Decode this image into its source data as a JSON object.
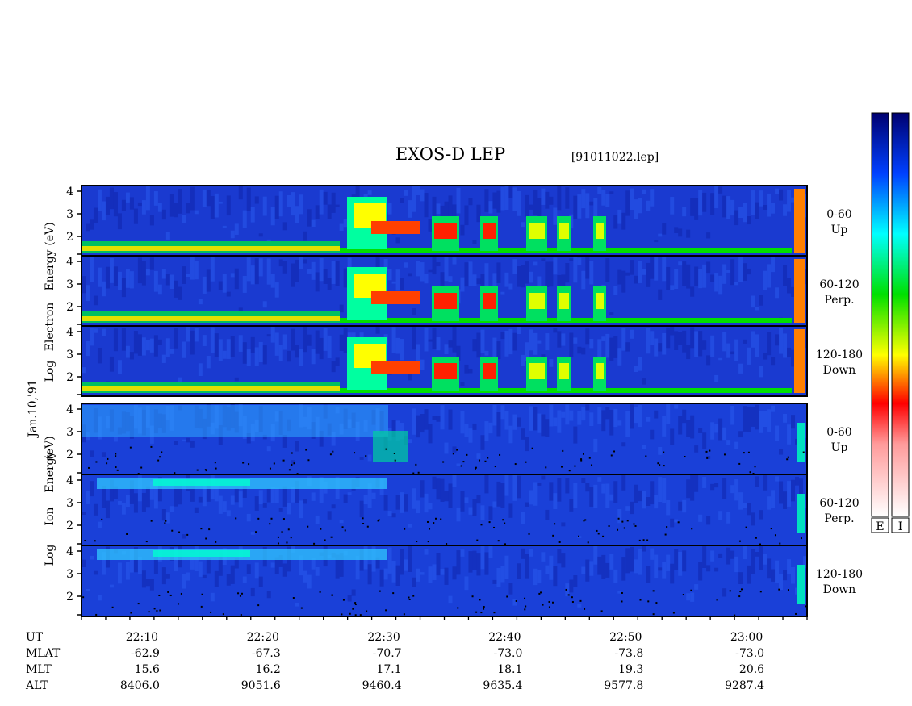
{
  "chart_data": {
    "type": "heatmap",
    "title": "EXOS-D LEP",
    "subtitle": "[91011022.lep]",
    "date_label": "Jan.10,'91",
    "y_scale": "log",
    "panels": [
      {
        "species": "Electron",
        "ylabel_parts": [
          "Log",
          "Electron",
          "Energy",
          "(eV)"
        ],
        "y_ticks": [
          "4",
          "3",
          "2"
        ],
        "channels": [
          {
            "range": "0-60",
            "direction": "Up"
          },
          {
            "range": "60-120",
            "direction": "Perp."
          },
          {
            "range": "120-180",
            "direction": "Down"
          }
        ]
      },
      {
        "species": "Ion",
        "ylabel_parts": [
          "Log",
          "Ion",
          "Energy",
          "(eV)"
        ],
        "y_ticks": [
          "4",
          "3",
          "2"
        ],
        "channels": [
          {
            "range": "0-60",
            "direction": "Up"
          },
          {
            "range": "60-120",
            "direction": "Perp."
          },
          {
            "range": "120-180",
            "direction": "Down"
          }
        ]
      }
    ],
    "x_axis": {
      "time_range": [
        "22:05",
        "23:05"
      ],
      "row_labels": [
        "UT",
        "MLAT",
        "MLT",
        "ALT"
      ],
      "ut": [
        "22:10",
        "22:20",
        "22:30",
        "22:40",
        "22:50",
        "23:00"
      ],
      "mlat": [
        "-62.9",
        "-67.3",
        "-70.7",
        "-73.0",
        "-73.8",
        "-73.0"
      ],
      "mlt": [
        "15.6",
        "16.2",
        "17.1",
        "18.1",
        "19.3",
        "20.6"
      ],
      "alt": [
        "8406.0",
        "9051.6",
        "9460.4",
        "9635.4",
        "9577.8",
        "9287.4"
      ]
    },
    "colorbars": [
      {
        "label": "E"
      },
      {
        "label": "I"
      }
    ],
    "colors": {
      "background_low": "#1030c8",
      "colormap": [
        "#ffffff",
        "#ff0000",
        "#ffff00",
        "#00ff00",
        "#00ffff",
        "#0000ff",
        "#000080"
      ]
    }
  }
}
